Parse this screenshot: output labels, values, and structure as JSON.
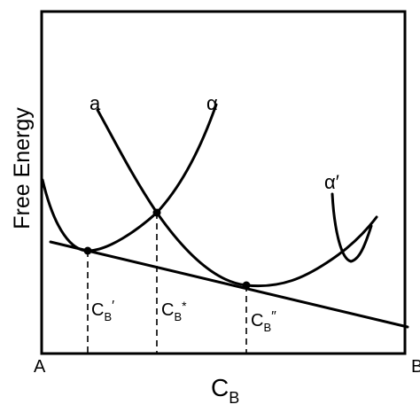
{
  "diagram": {
    "y_axis_label": "Free Energy",
    "x_axis_label": {
      "main": "C",
      "sub": "B"
    },
    "x_axis_left": "A",
    "x_axis_right": "B",
    "curve_labels": {
      "a": "a",
      "alpha": "α",
      "alpha_prime": "α′"
    },
    "compositions": [
      {
        "main": "C",
        "sub": "B",
        "mark": "′"
      },
      {
        "main": "C",
        "sub": "B",
        "mark": "*"
      },
      {
        "main": "C",
        "sub": "B",
        "mark": "″"
      }
    ]
  }
}
